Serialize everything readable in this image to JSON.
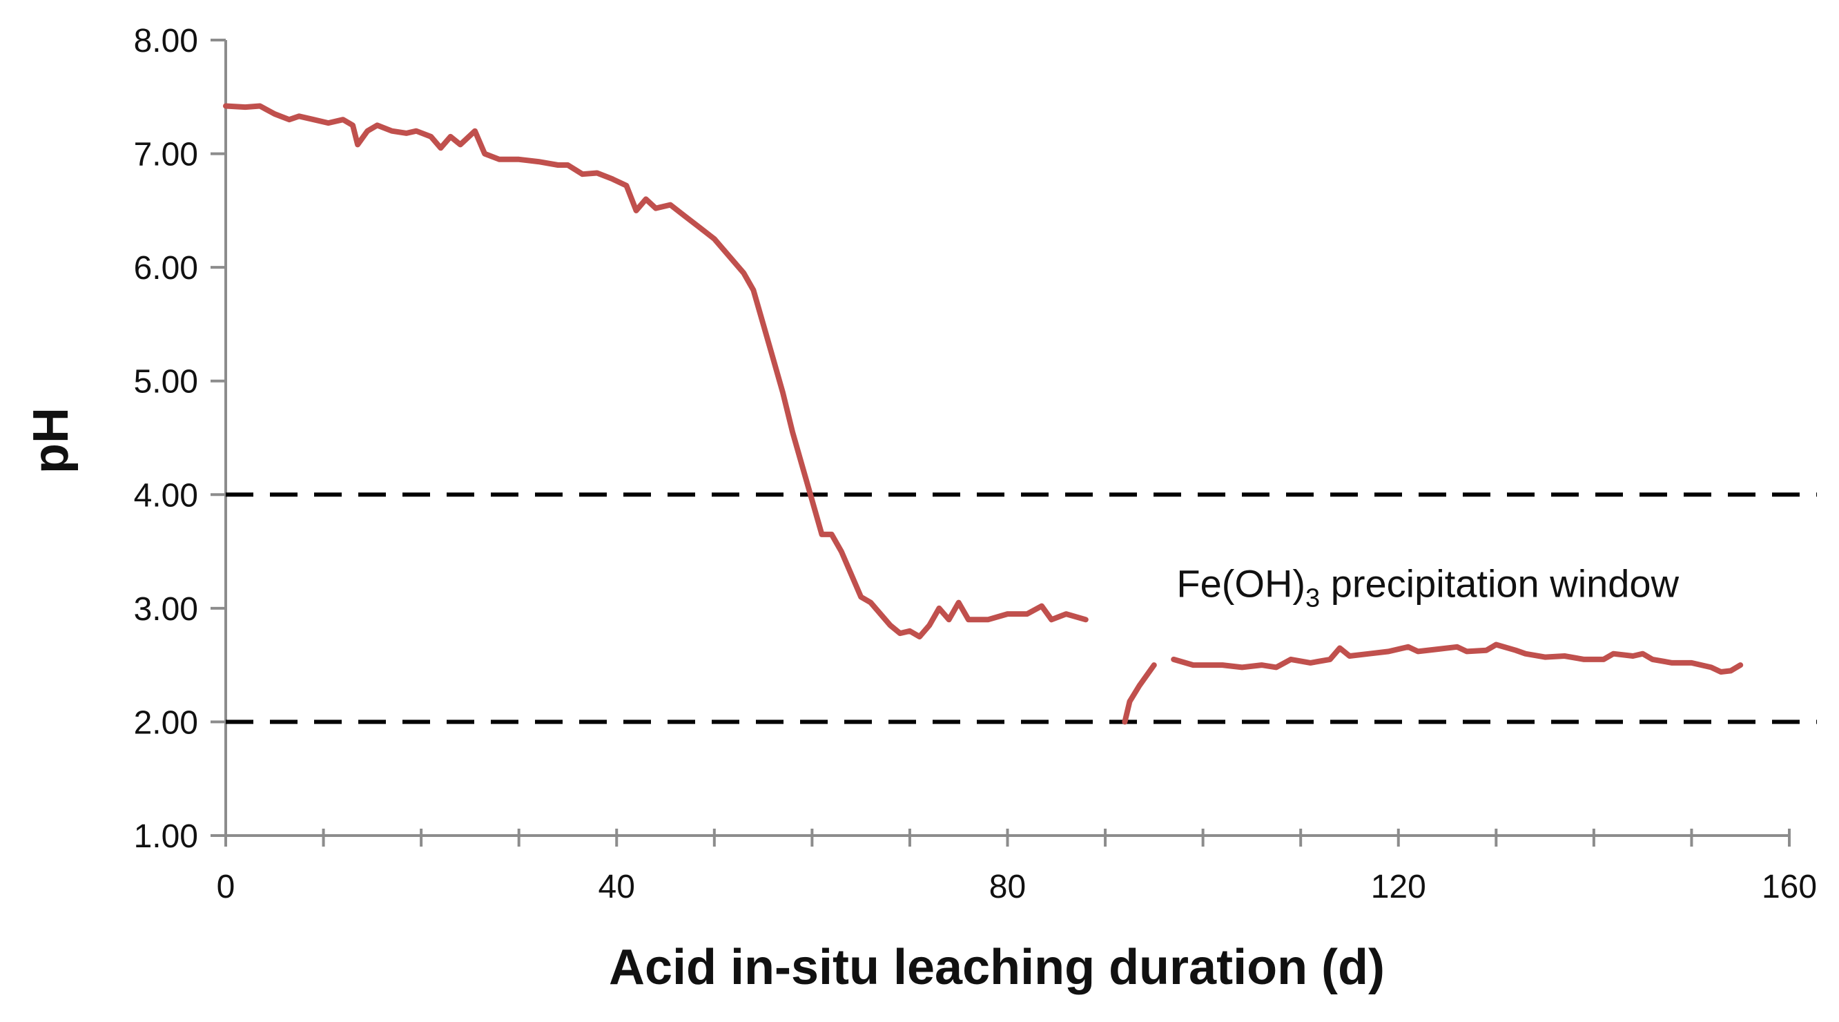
{
  "chart_data": {
    "type": "line",
    "title": "",
    "xlabel": "Acid in-situ leaching duration (d)",
    "ylabel": "pH",
    "xlim": [
      0,
      160
    ],
    "ylim": [
      1.0,
      8.0
    ],
    "x_ticks": [
      "0",
      "40",
      "80",
      "120",
      "160"
    ],
    "x_minor_step": 10,
    "y_ticks": [
      "1.00",
      "2.00",
      "3.00",
      "4.00",
      "5.00",
      "6.00",
      "7.00",
      "8.00"
    ],
    "grid": false,
    "legend": "none",
    "reference_lines": [
      {
        "axis": "y",
        "value": 4.0,
        "style": "dashed"
      },
      {
        "axis": "y",
        "value": 2.0,
        "style": "dashed"
      }
    ],
    "annotation": {
      "text_main": "Fe(OH)",
      "text_sub": "3",
      "text_rest": " precipitation window",
      "x": 123,
      "y": 3.1
    },
    "series": [
      {
        "color": "#c0504d",
        "segments": [
          [
            [
              0,
              7.42
            ],
            [
              2,
              7.41
            ],
            [
              3.5,
              7.42
            ],
            [
              5,
              7.35
            ],
            [
              6.5,
              7.3
            ],
            [
              7.5,
              7.33
            ],
            [
              9,
              7.3
            ],
            [
              10.5,
              7.27
            ],
            [
              12,
              7.3
            ],
            [
              13,
              7.25
            ],
            [
              13.5,
              7.08
            ],
            [
              14.5,
              7.2
            ],
            [
              15.5,
              7.25
            ],
            [
              17,
              7.2
            ],
            [
              18.5,
              7.18
            ],
            [
              19.5,
              7.2
            ],
            [
              21,
              7.15
            ],
            [
              22,
              7.05
            ],
            [
              23,
              7.15
            ],
            [
              24,
              7.08
            ],
            [
              25.5,
              7.2
            ],
            [
              26.5,
              7.0
            ],
            [
              28,
              6.95
            ],
            [
              30,
              6.95
            ],
            [
              32,
              6.93
            ],
            [
              34,
              6.9
            ],
            [
              35,
              6.9
            ],
            [
              36.5,
              6.82
            ],
            [
              38,
              6.83
            ],
            [
              39.5,
              6.78
            ],
            [
              41,
              6.72
            ],
            [
              42,
              6.5
            ],
            [
              43,
              6.6
            ],
            [
              44,
              6.52
            ],
            [
              45.5,
              6.55
            ],
            [
              47,
              6.45
            ],
            [
              48.5,
              6.35
            ],
            [
              50,
              6.25
            ],
            [
              51,
              6.15
            ],
            [
              52,
              6.05
            ],
            [
              53,
              5.95
            ],
            [
              54,
              5.8
            ],
            [
              55,
              5.5
            ],
            [
              56,
              5.2
            ],
            [
              57,
              4.9
            ],
            [
              58,
              4.55
            ],
            [
              59,
              4.25
            ],
            [
              60,
              3.95
            ],
            [
              61,
              3.65
            ],
            [
              62,
              3.65
            ],
            [
              63,
              3.5
            ],
            [
              64,
              3.3
            ],
            [
              65,
              3.1
            ],
            [
              66,
              3.05
            ],
            [
              67,
              2.95
            ],
            [
              68,
              2.85
            ],
            [
              69,
              2.78
            ],
            [
              70,
              2.8
            ],
            [
              71,
              2.75
            ],
            [
              72,
              2.85
            ],
            [
              73,
              3.0
            ],
            [
              74,
              2.9
            ],
            [
              75,
              3.05
            ],
            [
              76,
              2.9
            ],
            [
              78,
              2.9
            ],
            [
              80,
              2.95
            ],
            [
              82,
              2.95
            ],
            [
              83.5,
              3.02
            ],
            [
              84.5,
              2.9
            ],
            [
              86,
              2.95
            ],
            [
              88,
              2.9
            ]
          ],
          [
            [
              92,
              2.0
            ],
            [
              92.5,
              2.18
            ],
            [
              93.5,
              2.32
            ],
            [
              95,
              2.5
            ]
          ],
          [
            [
              97,
              2.55
            ],
            [
              99,
              2.5
            ],
            [
              102,
              2.5
            ],
            [
              104,
              2.48
            ],
            [
              106,
              2.5
            ],
            [
              107.5,
              2.48
            ],
            [
              109,
              2.55
            ],
            [
              111,
              2.52
            ],
            [
              113,
              2.55
            ],
            [
              114,
              2.65
            ],
            [
              115,
              2.58
            ],
            [
              117,
              2.6
            ],
            [
              119,
              2.62
            ],
            [
              121,
              2.66
            ],
            [
              122,
              2.62
            ],
            [
              124,
              2.64
            ],
            [
              126,
              2.66
            ],
            [
              127,
              2.62
            ],
            [
              129,
              2.63
            ],
            [
              130,
              2.68
            ],
            [
              132,
              2.63
            ],
            [
              133,
              2.6
            ],
            [
              135,
              2.57
            ],
            [
              137,
              2.58
            ],
            [
              139,
              2.55
            ],
            [
              141,
              2.55
            ],
            [
              142,
              2.6
            ],
            [
              144,
              2.58
            ],
            [
              145,
              2.6
            ],
            [
              146,
              2.55
            ],
            [
              148,
              2.52
            ],
            [
              150,
              2.52
            ],
            [
              152,
              2.48
            ],
            [
              153,
              2.44
            ],
            [
              154,
              2.45
            ],
            [
              155,
              2.5
            ]
          ]
        ]
      }
    ]
  }
}
